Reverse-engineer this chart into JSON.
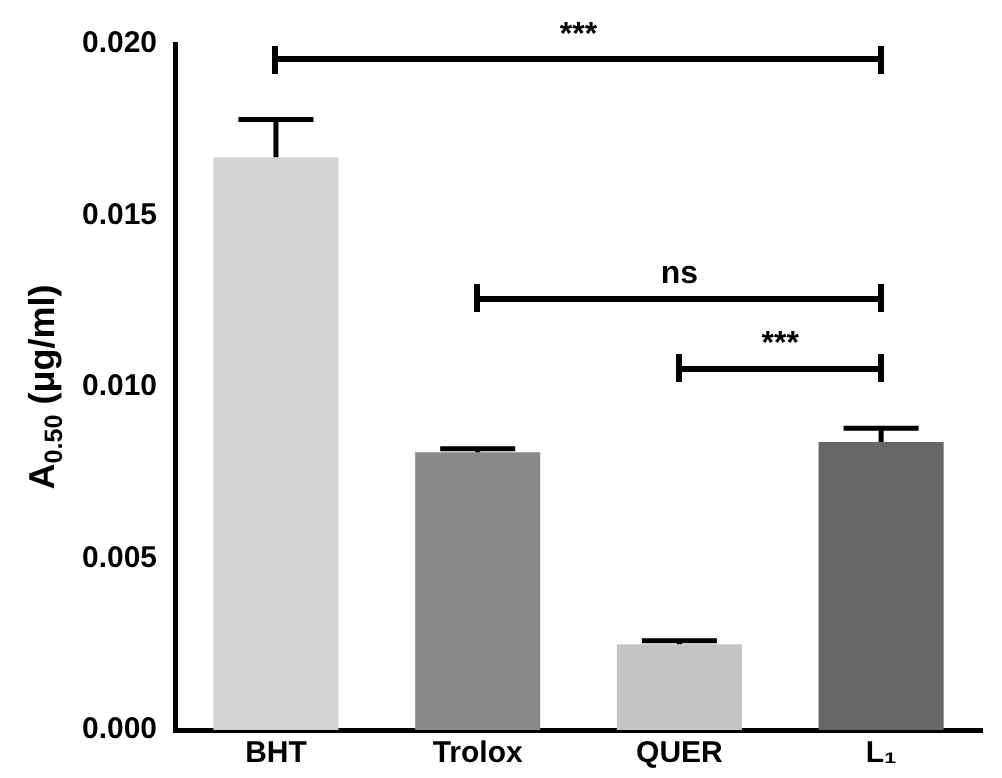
{
  "chart_data": {
    "type": "bar",
    "ylabel": "A$_{0.50}$ (μg/ml)",
    "categories": [
      "BHT",
      "Trolox",
      "QUER",
      "L₁"
    ],
    "values": [
      0.0167,
      0.0081,
      0.0025,
      0.0084
    ],
    "errors": [
      0.0011,
      0.0001,
      0.0001,
      0.0004
    ],
    "colors": [
      "#d4d4d4",
      "#8a8a8a",
      "#c4c4c4",
      "#666666"
    ],
    "ylim": [
      0,
      0.02
    ],
    "yticks": [
      {
        "value": 0,
        "label": "0.000"
      },
      {
        "value": 0.005,
        "label": "0.005"
      },
      {
        "value": 0.01,
        "label": "0.010"
      },
      {
        "value": 0.015,
        "label": "0.015"
      },
      {
        "value": 0.02,
        "label": "0.020"
      }
    ],
    "grid": false,
    "legend": false,
    "annotations": [
      "***",
      "ns",
      "***"
    ]
  }
}
